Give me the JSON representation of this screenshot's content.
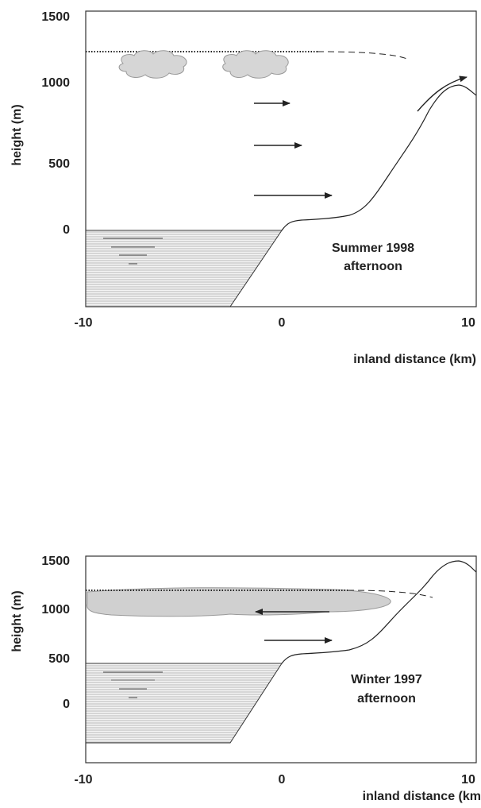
{
  "panels": [
    {
      "y_axis_label": "height (m)",
      "y_tick_labels": [
        "1500",
        "1000",
        "500",
        "0"
      ],
      "x_tick_labels": [
        "-10",
        "0",
        "10"
      ],
      "x_axis_label": "inland distance (km)",
      "season_label": "Summer 1998",
      "time_label": "afternoon"
    },
    {
      "y_axis_label": "height (m)",
      "y_tick_labels": [
        "1500",
        "1000",
        "500",
        "0"
      ],
      "x_tick_labels": [
        "-10",
        "0",
        "10"
      ],
      "x_axis_label": "inland distance (km",
      "season_label": "Winter 1997",
      "time_label": "afternoon"
    }
  ]
}
